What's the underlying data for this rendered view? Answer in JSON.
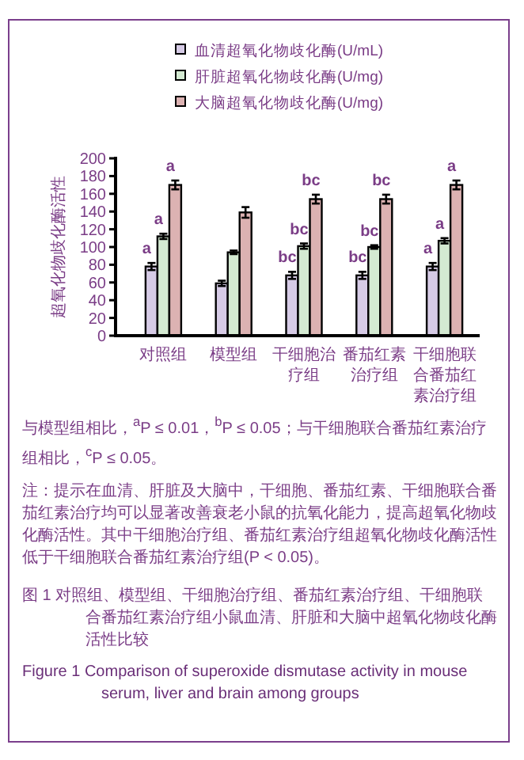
{
  "chart_data": {
    "type": "bar",
    "ylabel": "超氧化物歧化酶活性",
    "categories": [
      "对照组",
      "模型组",
      "干细胞治疗组",
      "番茄红素治疗组",
      "干细胞联合番茄红素治疗组"
    ],
    "series": [
      {
        "name": "血清超氧化物歧化酶(U/mL)",
        "color": "#d6cbe6",
        "values": [
          78,
          59,
          68,
          68,
          78
        ],
        "errors": [
          4,
          3,
          4,
          4,
          4
        ]
      },
      {
        "name": "肝脏超氧化物歧化酶(U/mg)",
        "color": "#d4ead2",
        "values": [
          112,
          94,
          101,
          100,
          107
        ],
        "errors": [
          3,
          2,
          3,
          2,
          3
        ]
      },
      {
        "name": "大脑超氧化物歧化酶(U/mg)",
        "color": "#dcb2b2",
        "values": [
          170,
          139,
          154,
          154,
          170
        ],
        "errors": [
          5,
          6,
          5,
          5,
          5
        ]
      }
    ],
    "ylim": [
      0,
      200
    ],
    "yticks": [
      0,
      20,
      40,
      60,
      80,
      100,
      120,
      140,
      160,
      180,
      200
    ],
    "grid": false,
    "legend": "top",
    "annotations": [
      {
        "text": "a",
        "x": "对照组",
        "y": 78
      },
      {
        "text": "a",
        "x": "对照组",
        "y": 112
      },
      {
        "text": "a",
        "x": "对照组",
        "y": 170
      },
      {
        "text": "bc",
        "x": "干细胞治疗组",
        "y": 68
      },
      {
        "text": "bc",
        "x": "干细胞治疗组",
        "y": 101
      },
      {
        "text": "bc",
        "x": "干细胞治疗组",
        "y": 154
      },
      {
        "text": "bc",
        "x": "番茄红素治疗组",
        "y": 68
      },
      {
        "text": "bc",
        "x": "番茄红素治疗组",
        "y": 100
      },
      {
        "text": "bc",
        "x": "番茄红素治疗组",
        "y": 154
      },
      {
        "text": "a",
        "x": "干细胞联合番茄红素治疗组",
        "y": 78
      },
      {
        "text": "a",
        "x": "干细胞联合番茄红素治疗组",
        "y": 107
      },
      {
        "text": "a",
        "x": "干细胞联合番茄红素治疗组",
        "y": 170
      },
      "与模型组相比，$^{a}$P ≤ 0.01，$^{b}$P ≤ 0.05；与干细胞联合番茄红素治疗组相比，$^{c}$P ≤ 0.05。",
      "注：提示在血清、肝脏及大脑中，干细胞、番茄红素、干细胞联合番茄红素治疗均可以显著改善衰老小鼠的抗氧化能力，提高超氧化物歧化酶活性。其中干细胞治疗组、番茄红素治疗组超氧化物歧化酶活性低于干细胞联合番茄红素治疗组(P < 0.05)。",
      "图 1  对照组、模型组、干细胞治疗组、番茄红素治疗组、干细胞联合番茄红素治疗组小鼠血清、肝脏和大脑中超氧化物歧化酶活性比较",
      "Figure 1  Comparison of superoxide dismutase activity in mouse serum, liver and brain among groups"
    ]
  }
}
